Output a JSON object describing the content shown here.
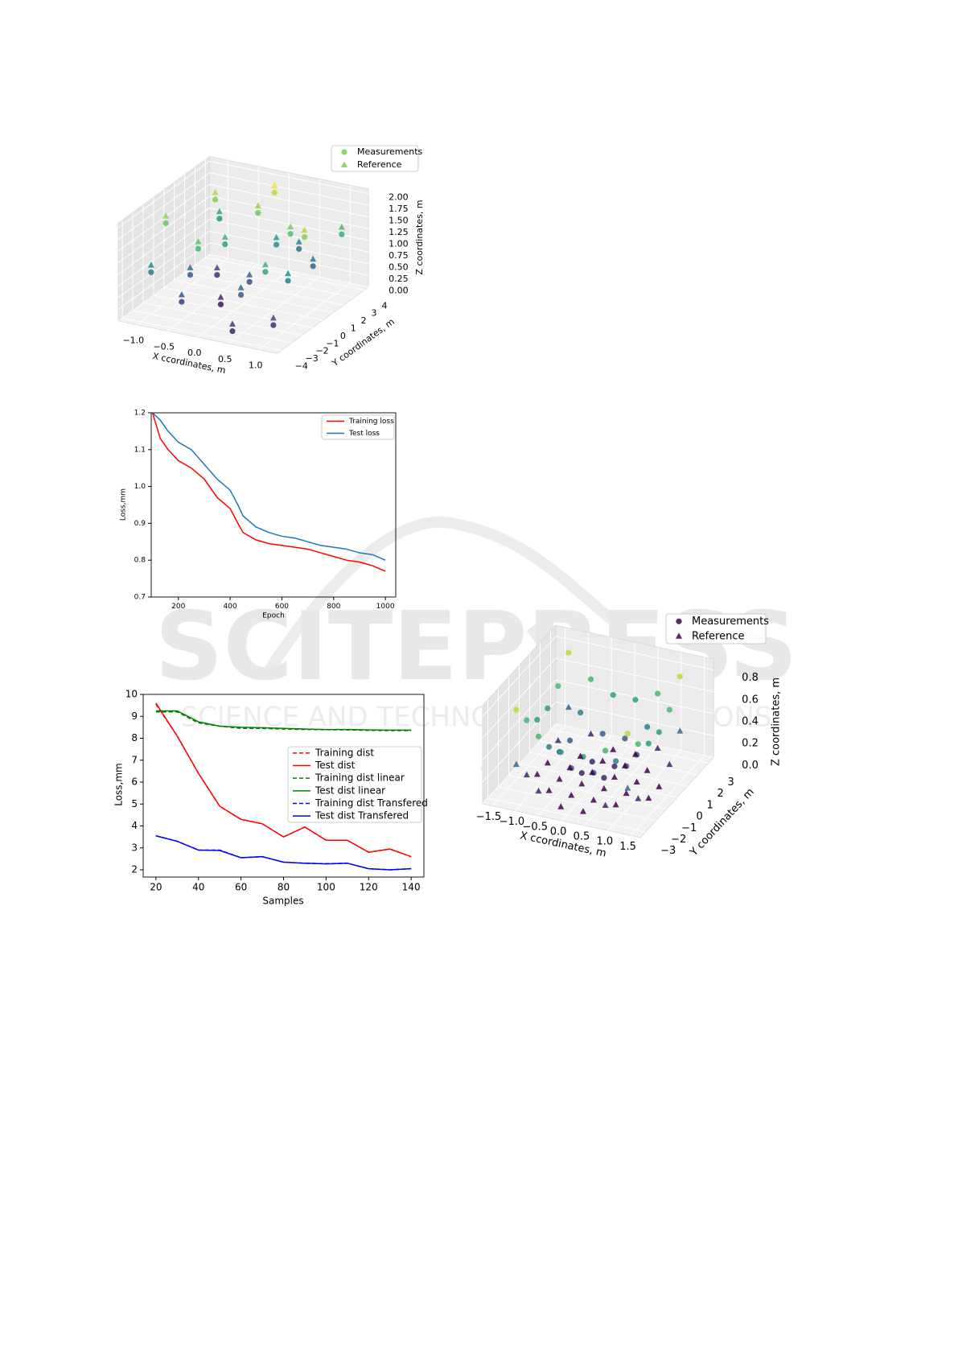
{
  "watermark": {
    "title": "SCITEPRESS",
    "subtitle": "SCIENCE AND TECHNOLOGY PUBLICATIONS"
  },
  "chart_data": [
    {
      "type": "scatter3d",
      "xlabel": "X ccordinates, m",
      "ylabel": "Y coordinates, m",
      "zlabel": "Z coordinates, m",
      "xlim": [
        -1.3,
        1.3
      ],
      "ylim": [
        -4.4,
        4.4
      ],
      "zlim": [
        0,
        2.1
      ],
      "xticks": [
        {
          "value": -1,
          "label": "−1.0"
        },
        {
          "value": -0.5,
          "label": "−0.5"
        },
        {
          "value": 0,
          "label": "0.0"
        },
        0.5,
        {
          "value": 1,
          "label": "1.0"
        }
      ],
      "yticks": [
        {
          "value": -4,
          "label": "−4"
        },
        {
          "value": -3,
          "label": "−3"
        },
        {
          "value": -2,
          "label": "−2"
        },
        {
          "value": -1,
          "label": "−1"
        },
        0,
        1,
        2,
        3,
        4
      ],
      "zticks": [
        {
          "value": 0,
          "label": "0.00"
        },
        0.25,
        {
          "value": 0.5,
          "label": "0.50"
        },
        0.75,
        {
          "value": 1,
          "label": "1.00"
        },
        1.25,
        {
          "value": 1.5,
          "label": "1.50"
        },
        1.75,
        {
          "value": 2,
          "label": "2.00"
        }
      ],
      "colormap": "viridis",
      "series": [
        {
          "name": "Measurements",
          "marker": "circle",
          "color": "#7ad151",
          "points": [
            [
              -1.1,
              -1,
              1.6
            ],
            [
              -0.8,
              2,
              1.7
            ],
            [
              -0.5,
              -3,
              0.4
            ],
            [
              -0.3,
              0,
              1.2
            ],
            [
              0,
              3,
              1.9
            ],
            [
              0.3,
              -2,
              0.6
            ],
            [
              0.6,
              1,
              1.5
            ],
            [
              0.9,
              -1,
              0.9
            ],
            [
              1.1,
              3,
              1.3
            ],
            [
              -1,
              -3,
              0.9
            ],
            [
              -0.6,
              1,
              0.3
            ],
            [
              -0.2,
              -1,
              0.1
            ],
            [
              0.2,
              2,
              1.0
            ],
            [
              0.5,
              -4,
              0.2
            ],
            [
              0.8,
              2,
              0.7
            ],
            [
              1.0,
              -3,
              0.3
            ],
            [
              -0.9,
              3,
              1.1
            ],
            [
              -0.4,
              -2,
              1.4
            ],
            [
              0.1,
              0,
              0.5
            ],
            [
              0.4,
              3,
              0.8
            ],
            [
              -0.7,
              -1,
              0.6
            ],
            [
              0.7,
              -2,
              1.2
            ],
            [
              -0.1,
              2,
              1.6
            ],
            [
              1.0,
              0,
              1.7
            ]
          ]
        },
        {
          "name": "Reference",
          "marker": "triangle",
          "color": "#7ad151",
          "points": [
            [
              -1.1,
              -1,
              1.75
            ],
            [
              -0.8,
              2,
              1.85
            ],
            [
              -0.5,
              -3,
              0.55
            ],
            [
              -0.3,
              0,
              1.35
            ],
            [
              0,
              3,
              2.05
            ],
            [
              0.3,
              -2,
              0.75
            ],
            [
              0.6,
              1,
              1.65
            ],
            [
              0.9,
              -1,
              1.05
            ],
            [
              1.1,
              3,
              1.45
            ],
            [
              -1,
              -3,
              1.05
            ],
            [
              -0.6,
              1,
              0.45
            ],
            [
              -0.2,
              -1,
              0.25
            ],
            [
              0.2,
              2,
              1.15
            ],
            [
              0.5,
              -4,
              0.35
            ],
            [
              0.8,
              2,
              0.85
            ],
            [
              1.0,
              -3,
              0.45
            ],
            [
              -0.9,
              3,
              1.25
            ],
            [
              -0.4,
              -2,
              1.55
            ],
            [
              0.1,
              0,
              0.65
            ],
            [
              0.4,
              3,
              0.95
            ],
            [
              -0.7,
              -1,
              0.75
            ],
            [
              0.7,
              -2,
              1.35
            ],
            [
              -0.1,
              2,
              1.75
            ],
            [
              1.0,
              0,
              1.85
            ]
          ]
        }
      ]
    },
    {
      "type": "line",
      "xlabel": "Epoch",
      "ylabel": "Loss,mm",
      "xlim": [
        95,
        1040
      ],
      "ylim": [
        0.7,
        1.2
      ],
      "xticks": [
        200,
        400,
        600,
        800,
        1000
      ],
      "yticks": [
        0.7,
        0.8,
        0.9,
        {
          "value": 1,
          "label": "1.0"
        },
        1.1,
        1.2
      ],
      "x": [
        100,
        130,
        160,
        200,
        250,
        300,
        350,
        400,
        430,
        450,
        500,
        550,
        600,
        650,
        700,
        750,
        800,
        850,
        900,
        950,
        1000
      ],
      "series": [
        {
          "name": "Training loss",
          "color": "#ff0000",
          "dash": false,
          "values": [
            1.2,
            1.13,
            1.1,
            1.07,
            1.05,
            1.02,
            0.97,
            0.94,
            0.9,
            0.875,
            0.855,
            0.845,
            0.84,
            0.835,
            0.83,
            0.82,
            0.81,
            0.8,
            0.795,
            0.785,
            0.77
          ]
        },
        {
          "name": "Test loss",
          "color": "#1f77b4",
          "dash": false,
          "values": [
            1.2,
            1.18,
            1.15,
            1.12,
            1.1,
            1.06,
            1.02,
            0.99,
            0.95,
            0.92,
            0.89,
            0.875,
            0.865,
            0.86,
            0.85,
            0.84,
            0.835,
            0.83,
            0.82,
            0.815,
            0.8
          ]
        }
      ]
    },
    {
      "type": "line",
      "xlabel": "Samples",
      "ylabel": "Loss,mm",
      "xlim": [
        14,
        146
      ],
      "ylim": [
        1.67,
        10
      ],
      "xticks": [
        20,
        40,
        60,
        80,
        100,
        120,
        140
      ],
      "yticks": [
        2,
        3,
        4,
        5,
        6,
        7,
        8,
        9,
        10
      ],
      "x": [
        20,
        30,
        40,
        50,
        60,
        70,
        80,
        90,
        100,
        110,
        120,
        130,
        140
      ],
      "series": [
        {
          "name": "Training dist",
          "color": "#ff0000",
          "dash": true,
          "values": [
            9.55,
            8.1,
            6.4,
            4.9,
            4.3,
            4.1,
            3.5,
            3.95,
            3.35,
            3.35,
            2.8,
            2.95,
            2.6
          ]
        },
        {
          "name": "Test dist",
          "color": "#ff0000",
          "dash": false,
          "values": [
            9.6,
            8.1,
            6.4,
            4.9,
            4.3,
            4.1,
            3.5,
            3.95,
            3.35,
            3.35,
            2.8,
            2.95,
            2.6
          ]
        },
        {
          "name": "Training dist linear",
          "color": "#008000",
          "dash": true,
          "values": [
            9.2,
            9.2,
            8.7,
            8.55,
            8.45,
            8.45,
            8.42,
            8.4,
            8.39,
            8.38,
            8.36,
            8.35,
            8.35
          ]
        },
        {
          "name": "Test dist linear",
          "color": "#008000",
          "dash": false,
          "values": [
            9.25,
            9.25,
            8.75,
            8.55,
            8.5,
            8.48,
            8.45,
            8.42,
            8.4,
            8.4,
            8.38,
            8.37,
            8.37
          ]
        },
        {
          "name": "Training dist Transfered",
          "color": "#0000ff",
          "dash": true,
          "values": [
            3.55,
            3.3,
            2.9,
            2.9,
            2.55,
            2.6,
            2.35,
            2.3,
            2.28,
            2.3,
            2.05,
            2.0,
            2.05
          ]
        },
        {
          "name": "Test dist Transfered",
          "color": "#0000ff",
          "dash": false,
          "values": [
            3.55,
            3.3,
            2.9,
            2.88,
            2.55,
            2.6,
            2.35,
            2.3,
            2.27,
            2.3,
            2.05,
            2.0,
            2.05
          ]
        }
      ]
    },
    {
      "type": "scatter3d",
      "xlabel": "X ccordinates, m",
      "ylabel": "Y coordinates, m",
      "zlabel": "Z coordinates, m",
      "xlim": [
        -1.7,
        1.7
      ],
      "ylim": [
        -3.5,
        3.5
      ],
      "zlim": [
        0,
        0.9
      ],
      "xticks": [
        {
          "value": -1.5,
          "label": "−1.5"
        },
        {
          "value": -1,
          "label": "−1.0"
        },
        {
          "value": -0.5,
          "label": "−0.5"
        },
        {
          "value": 0,
          "label": "0.0"
        },
        0.5,
        {
          "value": 1,
          "label": "1.0"
        },
        1.5
      ],
      "yticks": [
        {
          "value": -3,
          "label": "−3"
        },
        {
          "value": -2,
          "label": "−2"
        },
        {
          "value": -1,
          "label": "−1"
        },
        0,
        1,
        2,
        3
      ],
      "zticks": [
        {
          "value": 0,
          "label": "0.0"
        },
        0.2,
        0.4,
        0.6,
        0.8
      ],
      "colormap": "viridis",
      "x": [
        -1.2,
        -0.72,
        -0.24,
        0.24,
        0.72,
        1.2
      ],
      "y": [
        -2.5,
        -1.5,
        -0.5,
        0.5,
        1.5,
        2.5
      ],
      "series": [
        {
          "name": "Measurements",
          "marker": "circle",
          "color": "#440154",
          "z": [
            [
              0.8,
              0.6,
              0.5,
              0.5,
              0.6,
              0.8
            ],
            [
              0.6,
              0.4,
              0.25,
              0.25,
              0.4,
              0.6
            ],
            [
              0.5,
              0.25,
              0.1,
              0.1,
              0.25,
              0.5
            ],
            [
              0.5,
              0.25,
              0.1,
              0.1,
              0.25,
              0.5
            ],
            [
              0.6,
              0.4,
              0.25,
              0.25,
              0.4,
              0.6
            ],
            [
              0.8,
              0.6,
              0.5,
              0.5,
              0.6,
              0.8
            ]
          ]
        },
        {
          "name": "Reference",
          "marker": "triangle",
          "color": "#440154",
          "z": [
            [
              0.3,
              0.1,
              0,
              0,
              0.1,
              0.3
            ],
            [
              0.1,
              0,
              0,
              0,
              0,
              0.1
            ],
            [
              0,
              0,
              0,
              0,
              0,
              0
            ],
            [
              0,
              0,
              0,
              0,
              0,
              0
            ],
            [
              0.1,
              0,
              0,
              0,
              0,
              0.1
            ],
            [
              0.3,
              0.1,
              0,
              0,
              0.1,
              0.3
            ]
          ]
        }
      ]
    }
  ]
}
